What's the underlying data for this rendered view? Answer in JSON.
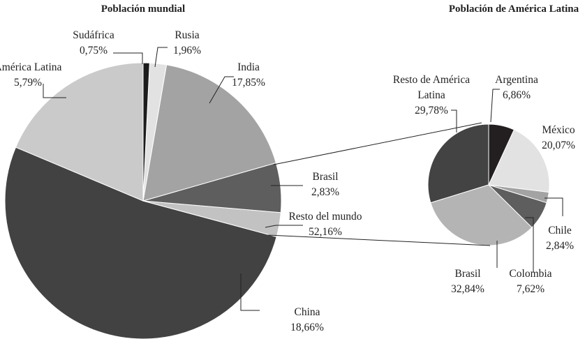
{
  "chart_data": [
    {
      "type": "pie",
      "title": "Población mundial",
      "categories": [
        "Sudáfrica",
        "Rusia",
        "India",
        "América Latina",
        "Brasil",
        "Resto del mundo",
        "China"
      ],
      "values": [
        0.75,
        1.96,
        17.85,
        5.79,
        2.83,
        52.16,
        18.66
      ],
      "value_labels": [
        "0,75%",
        "1,96%",
        "17,85%",
        "5,79%",
        "2,83%",
        "52,16%",
        "18,66%"
      ],
      "colors": [
        "#1c1c1c",
        "#e2e2e2",
        "#a3a3a3",
        "#5e5e5e",
        "#c2c2c2",
        "#424242",
        "#cacaca"
      ]
    },
    {
      "type": "pie",
      "title": "Población de América Latina",
      "categories": [
        "Argentina",
        "México",
        "Chile",
        "Colombia",
        "Brasil",
        "Resto de América Latina"
      ],
      "values": [
        6.86,
        20.07,
        2.84,
        7.62,
        32.84,
        29.78
      ],
      "value_labels": [
        "6,86%",
        "20,07%",
        "2,84%",
        "7,62%",
        "32,84%",
        "29,78%"
      ],
      "colors": [
        "#231f20",
        "#e2e2e2",
        "#a3a3a3",
        "#5e5e5e",
        "#b4b4b4",
        "#434343"
      ]
    }
  ]
}
